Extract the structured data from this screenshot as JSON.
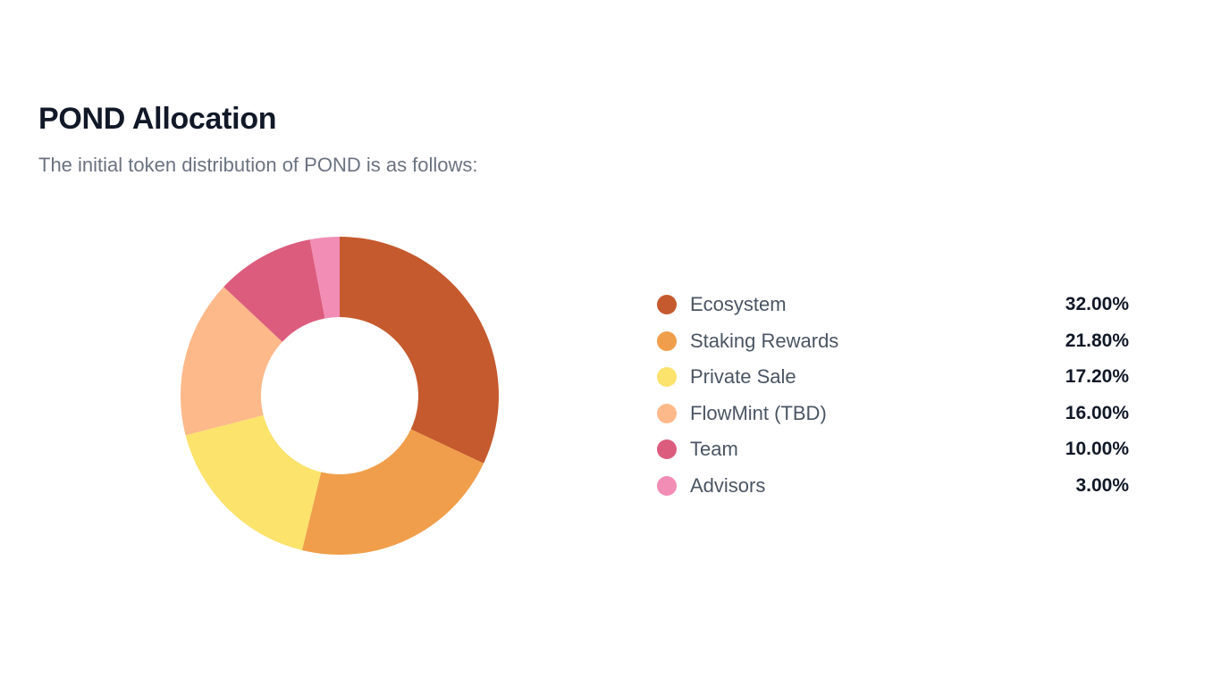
{
  "header": {
    "title": "POND Allocation",
    "subtitle": "The initial token distribution of POND is as follows:"
  },
  "chart_data": {
    "type": "pie",
    "variant": "donut",
    "categories": [
      "Ecosystem",
      "Staking Rewards",
      "Private Sale",
      "FlowMint (TBD)",
      "Team",
      "Advisors"
    ],
    "values": [
      32.0,
      21.8,
      17.2,
      16.0,
      10.0,
      3.0
    ],
    "value_labels": [
      "32.00%",
      "21.80%",
      "17.20%",
      "16.00%",
      "10.00%",
      "3.00%"
    ],
    "colors": [
      "#c55a2e",
      "#f09e4b",
      "#fbe36c",
      "#fdb98a",
      "#dc5c7d",
      "#f28db5"
    ],
    "legend_position": "right"
  }
}
